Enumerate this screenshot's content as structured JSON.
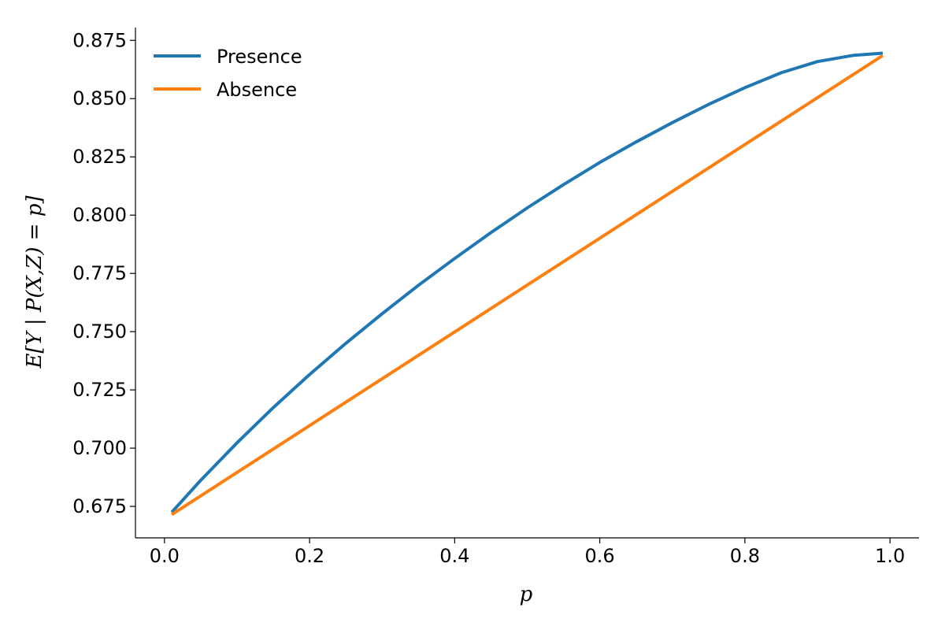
{
  "chart_data": {
    "type": "line",
    "title": "",
    "xlabel": "p",
    "ylabel": "E[Y | P(X,Z) = p]",
    "xlim": [
      -0.04,
      1.04
    ],
    "ylim": [
      0.6615,
      0.8805
    ],
    "xticks": [
      0.0,
      0.2,
      0.4,
      0.6,
      0.8,
      1.0
    ],
    "xtick_labels": [
      "0.0",
      "0.2",
      "0.4",
      "0.6",
      "0.8",
      "1.0"
    ],
    "yticks": [
      0.675,
      0.7,
      0.725,
      0.75,
      0.775,
      0.8,
      0.825,
      0.85,
      0.875
    ],
    "ytick_labels": [
      "0.675",
      "0.700",
      "0.725",
      "0.750",
      "0.775",
      "0.800",
      "0.825",
      "0.850",
      "0.875"
    ],
    "grid": false,
    "legend_position": "top-left",
    "series": [
      {
        "name": "Presence",
        "color": "#1f77b4",
        "x": [
          0.01,
          0.05,
          0.1,
          0.15,
          0.2,
          0.25,
          0.3,
          0.35,
          0.4,
          0.45,
          0.5,
          0.55,
          0.6,
          0.65,
          0.7,
          0.75,
          0.8,
          0.85,
          0.9,
          0.95,
          0.99
        ],
        "y": [
          0.6725,
          0.6862,
          0.7023,
          0.7174,
          0.7316,
          0.745,
          0.7577,
          0.7699,
          0.7814,
          0.7925,
          0.8031,
          0.8131,
          0.8226,
          0.8314,
          0.8397,
          0.8475,
          0.8547,
          0.8611,
          0.8659,
          0.8686,
          0.8695
        ]
      },
      {
        "name": "Absence",
        "color": "#ff7f0e",
        "x": [
          0.01,
          0.99
        ],
        "y": [
          0.6715,
          0.8685
        ]
      }
    ]
  }
}
